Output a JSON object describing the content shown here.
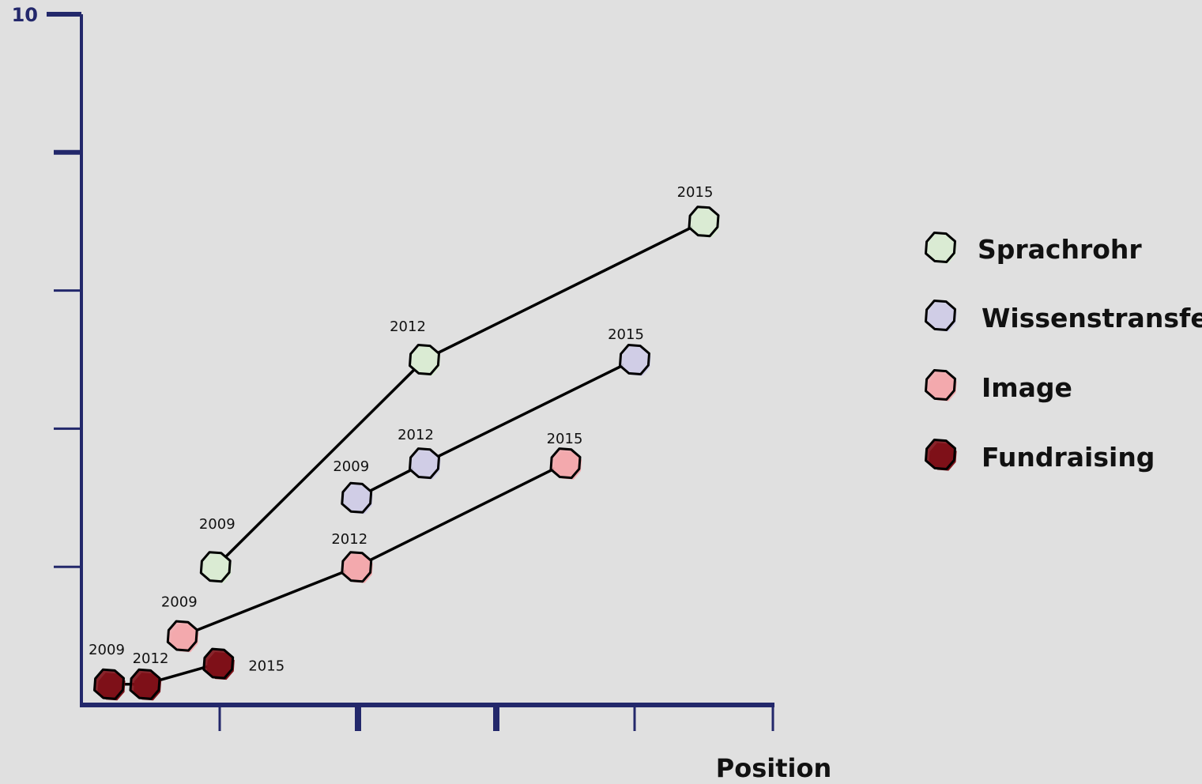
{
  "chart_data": {
    "type": "scatter",
    "xlabel": "Position",
    "ylabel": "",
    "xlim": [
      0,
      5
    ],
    "ylim": [
      0,
      5
    ],
    "y_tick_labels": [
      {
        "value": 5,
        "label": "10"
      }
    ],
    "grid": false,
    "legend_position": "right",
    "axis_color": "#23286b",
    "series": [
      {
        "name": "Sprachrohr",
        "color": "#d9ebd3",
        "points": [
          {
            "label": "2009",
            "x": 0.97,
            "y": 1.0
          },
          {
            "label": "2012",
            "x": 2.48,
            "y": 2.5
          },
          {
            "label": "2015",
            "x": 4.5,
            "y": 3.5
          }
        ]
      },
      {
        "name": "Wissenstransfer",
        "color": "#cfcde6",
        "points": [
          {
            "label": "2009",
            "x": 1.99,
            "y": 1.5
          },
          {
            "label": "2012",
            "x": 2.48,
            "y": 1.75
          },
          {
            "label": "2015",
            "x": 4.0,
            "y": 2.5
          }
        ]
      },
      {
        "name": "Image",
        "color": "#f3a9ad",
        "points": [
          {
            "label": "2009",
            "x": 0.73,
            "y": 0.5
          },
          {
            "label": "2012",
            "x": 1.99,
            "y": 1.0
          },
          {
            "label": "2015",
            "x": 3.5,
            "y": 1.75
          }
        ]
      },
      {
        "name": "Fundraising",
        "color": "#7e1118",
        "points": [
          {
            "label": "2009",
            "x": 0.2,
            "y": 0.15
          },
          {
            "label": "2012",
            "x": 0.46,
            "y": 0.15
          },
          {
            "label": "2015",
            "x": 0.99,
            "y": 0.3
          }
        ]
      }
    ]
  }
}
